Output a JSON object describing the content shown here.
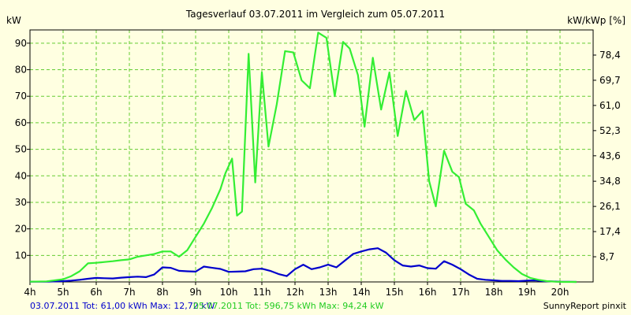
{
  "colors": {
    "background": "#ffffe1",
    "grid": "#66cc33",
    "series_a": "#0000cc",
    "series_b": "#33ee33"
  },
  "chart_data": {
    "type": "line",
    "title": "Tagesverlauf 03.07.2011 im Vergleich zum 05.07.2011",
    "ylabel_left": "kW",
    "ylabel_right": "kW/kWp [%]",
    "xlim": [
      4,
      21
    ],
    "ylim": [
      0,
      95
    ],
    "x_ticks": [
      {
        "value": 4,
        "label": "4h"
      },
      {
        "value": 5,
        "label": "5h"
      },
      {
        "value": 6,
        "label": "6h"
      },
      {
        "value": 7,
        "label": "7h"
      },
      {
        "value": 8,
        "label": "8h"
      },
      {
        "value": 9,
        "label": "9h"
      },
      {
        "value": 10,
        "label": "10h"
      },
      {
        "value": 11,
        "label": "11h"
      },
      {
        "value": 12,
        "label": "12h"
      },
      {
        "value": 13,
        "label": "13h"
      },
      {
        "value": 14,
        "label": "14h"
      },
      {
        "value": 15,
        "label": "15h"
      },
      {
        "value": 16,
        "label": "16h"
      },
      {
        "value": 17,
        "label": "17h"
      },
      {
        "value": 18,
        "label": "18h"
      },
      {
        "value": 19,
        "label": "19h"
      },
      {
        "value": 20,
        "label": "20h"
      }
    ],
    "y_ticks_left": [
      10,
      20,
      30,
      40,
      50,
      60,
      70,
      80,
      90
    ],
    "y_ticks_right": [
      {
        "value": 8,
        "label": "8,7"
      },
      {
        "value": 16,
        "label": "17,4"
      },
      {
        "value": 24,
        "label": "26,1"
      },
      {
        "value": 32,
        "label": "34,8"
      },
      {
        "value": 40,
        "label": "43,6"
      },
      {
        "value": 48,
        "label": "52,3"
      },
      {
        "value": 56,
        "label": "61,0"
      },
      {
        "value": 64,
        "label": "69,7"
      },
      {
        "value": 72,
        "label": "78,4"
      }
    ],
    "y_right_max": 87.1,
    "grid": true,
    "series": [
      {
        "legend": "03.07.2011 Tot: 61,00 kWh Max: 12,72 kW",
        "x": [
          4.0,
          4.5,
          5.0,
          5.25,
          5.5,
          5.75,
          6.0,
          6.25,
          6.5,
          6.75,
          7.0,
          7.25,
          7.5,
          7.75,
          8.0,
          8.25,
          8.5,
          8.75,
          9.0,
          9.25,
          9.5,
          9.75,
          10.0,
          10.25,
          10.5,
          10.75,
          11.0,
          11.25,
          11.5,
          11.75,
          12.0,
          12.25,
          12.5,
          12.75,
          13.0,
          13.25,
          13.5,
          13.75,
          14.0,
          14.25,
          14.5,
          14.75,
          15.0,
          15.25,
          15.5,
          15.75,
          16.0,
          16.25,
          16.5,
          16.75,
          17.0,
          17.25,
          17.5,
          17.75,
          18.0,
          18.25,
          18.5,
          18.75,
          19.0,
          19.25,
          19.5,
          19.75,
          20.0,
          20.5
        ],
        "y": [
          0.1,
          0.1,
          0.3,
          0.5,
          0.8,
          1.2,
          1.5,
          1.4,
          1.3,
          1.6,
          1.8,
          2.0,
          1.8,
          2.8,
          5.5,
          5.3,
          4.2,
          4.0,
          3.9,
          5.8,
          5.3,
          4.9,
          3.8,
          3.9,
          4.0,
          4.8,
          5.0,
          4.2,
          3.0,
          2.2,
          4.8,
          6.5,
          4.8,
          5.5,
          6.5,
          5.5,
          8.0,
          10.5,
          11.5,
          12.3,
          12.7,
          11.0,
          8.2,
          6.2,
          5.8,
          6.2,
          5.2,
          5.0,
          7.8,
          6.5,
          4.8,
          2.8,
          1.2,
          0.8,
          0.6,
          0.4,
          0.4,
          0.3,
          0.5,
          0.6,
          0.3,
          0.2,
          0.1,
          0.0
        ]
      },
      {
        "legend": "05.07.2011 Tot: 596,75 kWh Max: 94,24 kW",
        "x": [
          4.0,
          4.5,
          5.0,
          5.25,
          5.5,
          5.75,
          6.0,
          6.25,
          6.5,
          6.75,
          7.0,
          7.25,
          7.5,
          7.75,
          8.0,
          8.25,
          8.5,
          8.75,
          9.0,
          9.25,
          9.5,
          9.75,
          9.9,
          10.1,
          10.25,
          10.4,
          10.6,
          10.8,
          11.0,
          11.2,
          11.45,
          11.7,
          11.95,
          12.2,
          12.45,
          12.7,
          12.95,
          13.2,
          13.45,
          13.65,
          13.9,
          14.1,
          14.35,
          14.6,
          14.85,
          15.1,
          15.35,
          15.6,
          15.85,
          16.05,
          16.25,
          16.5,
          16.75,
          16.95,
          17.15,
          17.4,
          17.6,
          17.85,
          18.1,
          18.35,
          18.6,
          18.85,
          19.1,
          19.35,
          19.6,
          19.85,
          20.1,
          20.5
        ],
        "y": [
          0.1,
          0.2,
          1.0,
          2.2,
          4.0,
          7.0,
          7.2,
          7.5,
          7.8,
          8.2,
          8.5,
          9.5,
          10.0,
          10.5,
          11.5,
          11.5,
          9.5,
          12.0,
          17.0,
          22.0,
          28.0,
          35.0,
          41.0,
          46.5,
          25.0,
          26.5,
          86.0,
          37.5,
          79.0,
          51.0,
          67.0,
          87.0,
          86.5,
          76.0,
          73.0,
          94.0,
          92.0,
          70.0,
          90.5,
          88.0,
          78.0,
          58.5,
          84.5,
          65.0,
          79.0,
          55.0,
          72.0,
          61.0,
          64.5,
          38.0,
          28.5,
          49.5,
          41.5,
          39.5,
          29.5,
          27.0,
          22.0,
          17.0,
          12.0,
          8.5,
          5.5,
          3.0,
          1.5,
          0.8,
          0.3,
          0.1,
          0.0,
          0.0
        ]
      }
    ]
  },
  "footer": {
    "credit": "SunnyReport pinxit"
  }
}
